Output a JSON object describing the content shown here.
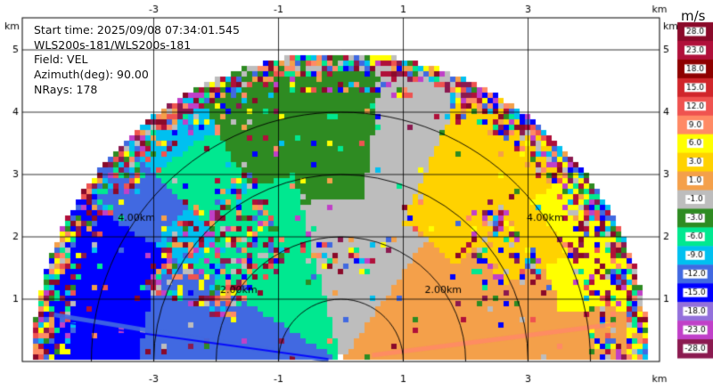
{
  "info": {
    "start_time": "Start time: 2025/09/08 07:34:01.545",
    "station": "WLS200s-181/WLS200s-181",
    "field": "Field: VEL",
    "azimuth": "Azimuth(deg): 90.00",
    "nrays": "NRays: 178"
  },
  "chart_data": {
    "type": "heatmap",
    "description_free": true,
    "x_unit_label": "km",
    "y_unit_label": "km",
    "x_ticks": [
      "-3",
      "-1",
      "1",
      "3"
    ],
    "y_ticks": [
      "1",
      "2",
      "3",
      "4",
      "5"
    ],
    "xlim": [
      -5.0,
      5.0
    ],
    "ylim": [
      0.0,
      5.9
    ],
    "range_rings": [
      {
        "radius_km": 2.0,
        "label": "2.00km"
      },
      {
        "radius_km": 4.0,
        "label": "4.00km"
      }
    ],
    "colorbar": {
      "unit": "m/s",
      "labels": [
        "28.0",
        "23.0",
        "18.0",
        "15.0",
        "12.0",
        "9.0",
        "6.0",
        "3.0",
        "1.0",
        "-1.0",
        "-3.0",
        "-6.0",
        "-9.0",
        "-12.0",
        "-15.0",
        "-18.0",
        "-23.0",
        "-28.0"
      ],
      "colors": [
        "#8a0a2a",
        "#b0103a",
        "#8e0000",
        "#d0262b",
        "#ef5350",
        "#ff8a65",
        "#ffff00",
        "#ffd200",
        "#f4a04a",
        "#bdbdbd",
        "#2e8b22",
        "#00e890",
        "#00c0f0",
        "#4169e1",
        "#0000ff",
        "#9370db",
        "#c040c8",
        "#8b1a50"
      ]
    }
  }
}
